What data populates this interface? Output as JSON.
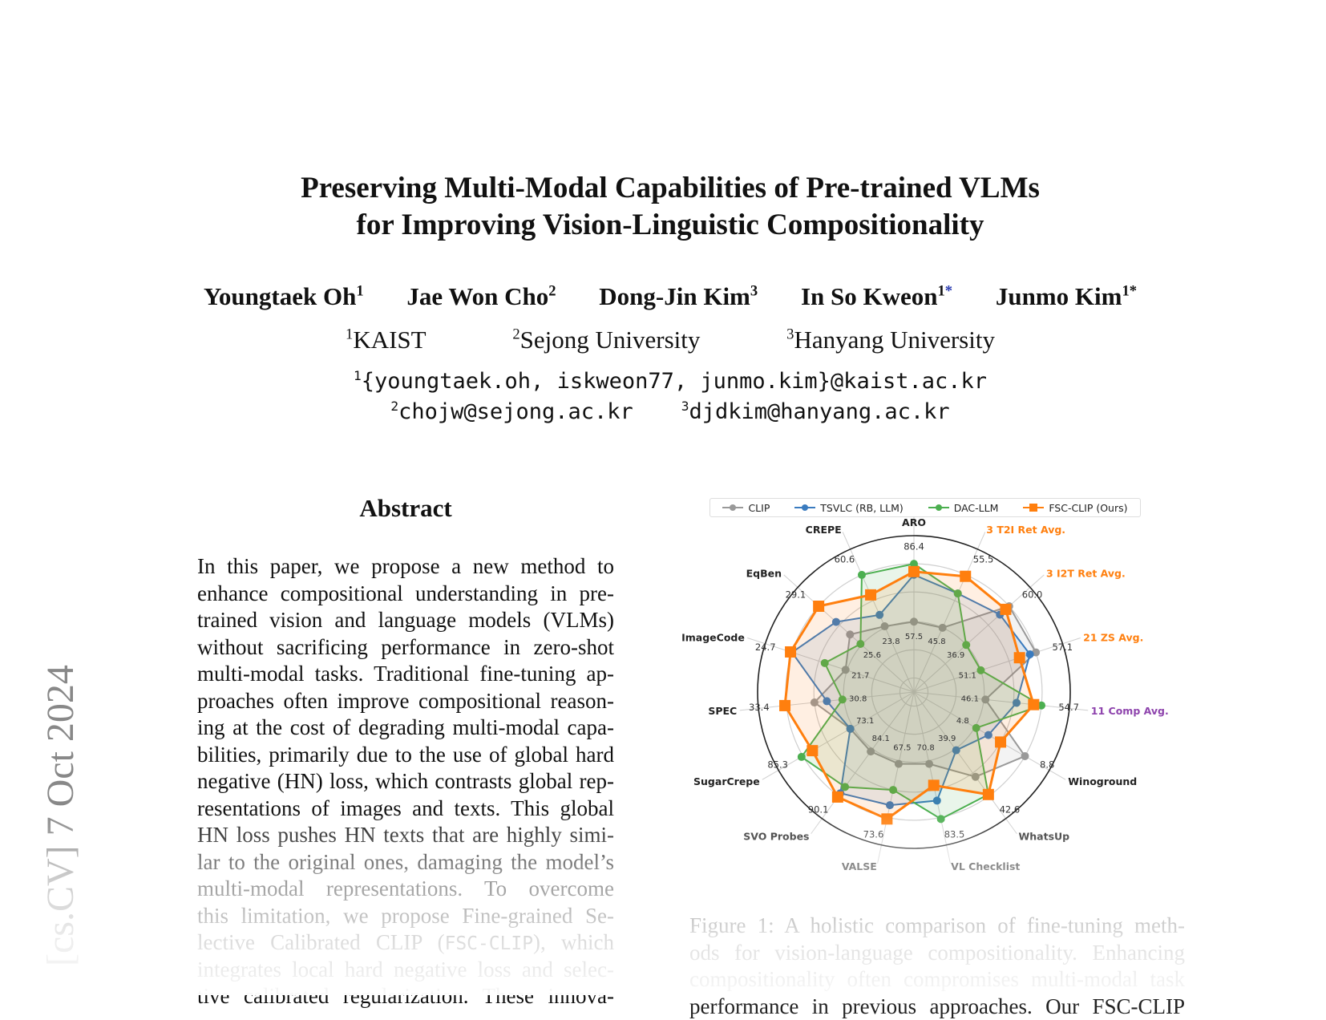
{
  "paper": {
    "title_line1": "Preserving Multi-Modal Capabilities of Pre-trained VLMs",
    "title_line2": "for Improving Vision-Linguistic Compositionality",
    "authors": [
      {
        "name": "Youngtaek Oh",
        "sup": "1",
        "star": ""
      },
      {
        "name": "Jae Won Cho",
        "sup": "2",
        "star": ""
      },
      {
        "name": "Dong-Jin Kim",
        "sup": "3",
        "star": ""
      },
      {
        "name": "In So Kweon",
        "sup": "1",
        "star": "*"
      },
      {
        "name": "Junmo Kim",
        "sup": "1",
        "star": "*"
      }
    ],
    "affiliations": [
      {
        "sup": "1",
        "name": "KAIST"
      },
      {
        "sup": "2",
        "name": "Sejong University"
      },
      {
        "sup": "3",
        "name": "Hanyang University"
      }
    ],
    "emails": {
      "line1_sup": "1",
      "line1": "{youngtaek.oh, iskweon77, junmo.kim}@kaist.ac.kr",
      "line2a_sup": "2",
      "line2a": "chojw@sejong.ac.kr",
      "line2b_sup": "3",
      "line2b": "djdkim@hanyang.ac.kr"
    },
    "arxiv_stamp": "[cs.CV]  7 Oct 2024",
    "abstract_heading": "Abstract",
    "abstract_lines": [
      "In this paper, we propose a new method to",
      "enhance compositional understanding in pre-",
      "trained vision and language models (VLMs)",
      "without sacrificing performance in zero-shot",
      "multi-modal tasks. Traditional fine-tuning ap-",
      "proaches often improve compositional reason-",
      "ing at the cost of degrading multi-modal capa-",
      "bilities, primarily due to the use of global hard",
      "negative (HN) loss, which contrasts global rep-",
      "resentations of images and texts. This global",
      "HN loss pushes HN texts that are highly simi-",
      "lar to the original ones, damaging the model’s",
      "multi-modal representations.  To overcome",
      "this limitation, we propose Fine-grained Se-"
    ],
    "abstract_line15_pre": "lective Calibrated CLIP (",
    "abstract_line15_code": "FSC-CLIP",
    "abstract_line15_post": "), which",
    "abstract_lines_end": [
      "integrates local hard negative loss and selec-",
      "tive calibrated regularization.  These innova-"
    ],
    "caption_lines": [
      "Figure 1: A holistic comparison of fine-tuning meth-",
      "ods for vision-language compositionality. Enhancing",
      "compositionality often compromises multi-modal task",
      "performance in previous approaches. Our FSC-CLIP"
    ]
  },
  "chart_data": {
    "type": "radar",
    "title": "",
    "legend_position": "top",
    "radial_scale": "per-axis normalized (min label near inner ring, max label near outer ring)",
    "categories": [
      {
        "label": "ARO",
        "color": "#222222",
        "min": "57.5",
        "max": "86.4"
      },
      {
        "label": "3 T2I Ret Avg.",
        "color": "#ff7f0e",
        "min": "45.8",
        "max": "55.5"
      },
      {
        "label": "3 I2T Ret Avg.",
        "color": "#ff7f0e",
        "min": "36.9",
        "max": "60.0"
      },
      {
        "label": "21 ZS Avg.",
        "color": "#ff7f0e",
        "min": "51.1",
        "max": "57.1"
      },
      {
        "label": "11 Comp Avg.",
        "color": "#8e44ad",
        "min": "46.1",
        "max": "54.7"
      },
      {
        "label": "Winoground",
        "color": "#222222",
        "min": "4.8",
        "max": "8.8"
      },
      {
        "label": "WhatsUp",
        "color": "#222222",
        "min": "39.9",
        "max": "42.6"
      },
      {
        "label": "VL Checklist",
        "color": "#222222",
        "min": "70.8",
        "max": "83.5"
      },
      {
        "label": "VALSE",
        "color": "#222222",
        "min": "67.5",
        "max": "73.6"
      },
      {
        "label": "SVO Probes",
        "color": "#222222",
        "min": "84.1",
        "max": "90.1"
      },
      {
        "label": "SugarCrepe",
        "color": "#222222",
        "min": "73.1",
        "max": "85.3"
      },
      {
        "label": "SPEC",
        "color": "#222222",
        "min": "30.8",
        "max": "33.4"
      },
      {
        "label": "ImageCode",
        "color": "#222222",
        "min": "21.7",
        "max": "24.7"
      },
      {
        "label": "EqBen",
        "color": "#222222",
        "min": "25.6",
        "max": "29.1"
      },
      {
        "label": "CREPE",
        "color": "#222222",
        "min": "23.8",
        "max": "60.6"
      }
    ],
    "series": [
      {
        "name": "CLIP",
        "color": "#999999",
        "marker": "circle",
        "values": [
          0.45,
          0.45,
          0.82,
          0.82,
          0.46,
          0.82,
          0.67,
          0.47,
          0.47,
          0.47,
          0.47,
          0.64,
          0.46,
          0.55,
          0.46
        ]
      },
      {
        "name": "TSVLC (RB, LLM)",
        "color": "#3a7bbf",
        "marker": "circle",
        "values": [
          0.75,
          0.69,
          0.74,
          0.78,
          0.66,
          0.55,
          0.46,
          0.71,
          0.74,
          0.8,
          0.47,
          0.56,
          0.82,
          0.67,
          0.54
        ]
      },
      {
        "name": "DAC-LLM",
        "color": "#4caf50",
        "marker": "circle",
        "values": [
          0.82,
          0.69,
          0.45,
          0.45,
          0.82,
          0.46,
          0.81,
          0.83,
          0.64,
          0.75,
          0.83,
          0.46,
          0.6,
          0.46,
          0.82
        ]
      },
      {
        "name": "FSC-CLIP (Ours)",
        "color": "#ff7f0e",
        "marker": "square",
        "values": [
          0.77,
          0.81,
          0.79,
          0.71,
          0.77,
          0.64,
          0.81,
          0.61,
          0.83,
          0.83,
          0.75,
          0.83,
          0.83,
          0.82,
          0.68
        ]
      }
    ]
  }
}
